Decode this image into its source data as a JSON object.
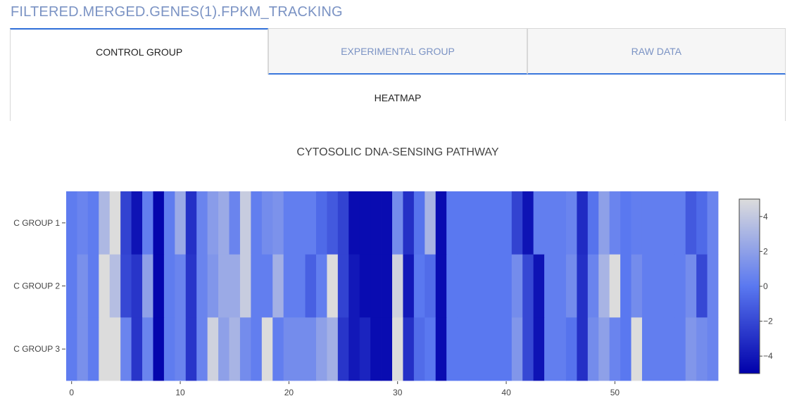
{
  "header": {
    "file_title": "FILTERED.MERGED.GENES(1).FPKM_TRACKING"
  },
  "tabs": [
    {
      "label": "CONTROL GROUP",
      "active": true
    },
    {
      "label": "EXPERIMENTAL GROUP",
      "active": false
    },
    {
      "label": "RAW DATA",
      "active": false
    }
  ],
  "subtabs": [
    {
      "label": "HEATMAP",
      "active": true
    }
  ],
  "colors": {
    "accent": "#2f6fd8",
    "inactive_tab_text": "#7b93c4",
    "colorscale_low": "#0000aa",
    "colorscale_mid": "#5a78f0",
    "colorscale_high": "#dcdcdc"
  },
  "chart_data": {
    "type": "heatmap",
    "title": "CYTOSOLIC DNA-SENSING PATHWAY",
    "y_categories": [
      "C GROUP 1",
      "C GROUP 2",
      "C GROUP 3"
    ],
    "x_range": [
      -0.5,
      59.5
    ],
    "x_ticks": [
      0,
      10,
      20,
      30,
      40,
      50
    ],
    "colorbar": {
      "range": [
        -5,
        5
      ],
      "ticks": [
        4,
        2,
        0,
        -2,
        -4
      ],
      "tick_labels": [
        "4",
        "2",
        "0",
        "−2",
        "−4"
      ]
    },
    "z": [
      [
        0.2,
        0.6,
        0.2,
        3.2,
        5.0,
        -2.2,
        -4.2,
        0.3,
        -4.8,
        0.2,
        2.5,
        -3.0,
        0.6,
        1.8,
        2.5,
        0.6,
        4.2,
        0.3,
        1.0,
        1.3,
        0.3,
        0.3,
        0.3,
        -0.6,
        -1.3,
        -2.2,
        -4.5,
        -4.5,
        -4.5,
        -4.5,
        1.0,
        -3.0,
        -0.2,
        3.0,
        -4.5,
        0.0,
        0.0,
        0.0,
        0.0,
        0.0,
        0.0,
        -2.2,
        -4.2,
        0.3,
        0.3,
        0.3,
        0.6,
        -3.2,
        -0.2,
        2.0,
        0.6,
        0.0,
        0.3,
        0.3,
        0.3,
        0.3,
        0.3,
        -1.3,
        -0.6,
        0.6
      ],
      [
        0.2,
        1.2,
        0.2,
        5.0,
        3.5,
        -2.0,
        -2.8,
        2.0,
        -4.8,
        0.2,
        0.6,
        -2.8,
        0.6,
        1.5,
        2.5,
        2.5,
        4.2,
        0.3,
        0.3,
        2.8,
        0.3,
        0.3,
        -1.0,
        0.3,
        5.0,
        -2.2,
        -4.0,
        -4.5,
        -4.5,
        -4.5,
        4.5,
        -4.0,
        0.0,
        -0.5,
        -4.5,
        0.0,
        0.0,
        0.0,
        0.0,
        0.0,
        0.0,
        1.0,
        -2.0,
        -4.2,
        0.3,
        0.3,
        1.0,
        -3.0,
        0.6,
        3.0,
        5.0,
        0.0,
        1.0,
        0.3,
        0.3,
        0.3,
        0.3,
        1.0,
        -2.0,
        0.6
      ],
      [
        0.2,
        1.2,
        0.2,
        5.0,
        5.0,
        0.6,
        -2.8,
        0.6,
        -4.8,
        0.2,
        0.6,
        -2.8,
        0.6,
        4.5,
        2.0,
        3.0,
        1.0,
        0.3,
        5.0,
        0.3,
        1.0,
        1.0,
        1.0,
        2.0,
        2.8,
        -2.8,
        -4.0,
        -3.5,
        -4.5,
        -4.5,
        5.0,
        -3.0,
        -0.5,
        0.0,
        -4.5,
        0.0,
        0.0,
        0.0,
        0.0,
        0.0,
        0.0,
        1.5,
        -2.0,
        -4.2,
        0.3,
        0.3,
        -0.2,
        -3.0,
        1.0,
        2.0,
        0.6,
        0.0,
        5.0,
        0.3,
        0.3,
        0.3,
        0.3,
        1.5,
        1.0,
        0.6
      ]
    ]
  }
}
